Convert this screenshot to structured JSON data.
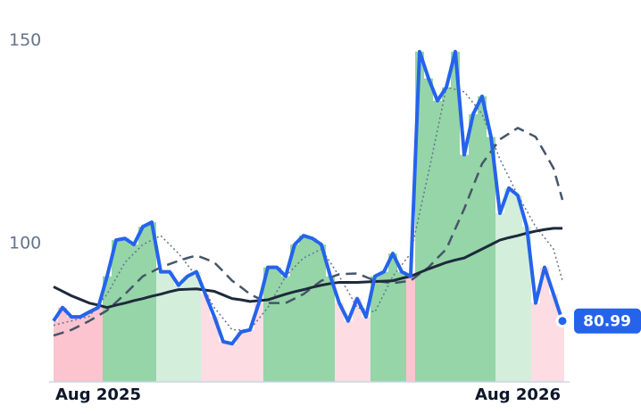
{
  "chart_data": {
    "type": "line",
    "categories": [
      null,
      null,
      null,
      null,
      null,
      "Aug 2025",
      null,
      null,
      null,
      null,
      null,
      null,
      null,
      null,
      null,
      null,
      null,
      null,
      null,
      null,
      null,
      null,
      null,
      null,
      null,
      null,
      null,
      null,
      null,
      null,
      null,
      null,
      null,
      null,
      null,
      null,
      null,
      null,
      null,
      null,
      null,
      null,
      null,
      null,
      null,
      null,
      null,
      null,
      null,
      null,
      null,
      null,
      "Aug 2026",
      null,
      null,
      null,
      null,
      null
    ],
    "ylim": [
      66,
      160
    ],
    "yticks": [
      100,
      150
    ],
    "band_colors": {
      "up": "#95d5a8",
      "weak_up": "#d3eedb",
      "weak_down": "#fbc4cf",
      "down": "#fddde3"
    },
    "series": [
      {
        "color": "#2563eb",
        "dash": "solid",
        "width": 4,
        "values": [
          81,
          84.3,
          82,
          82,
          83.2,
          84.3,
          92,
          100.9,
          101.3,
          99.8,
          104.2,
          105.3,
          93.1,
          93.1,
          89.8,
          92,
          93.1,
          87.6,
          82.1,
          75.9,
          75.4,
          78.3,
          78.8,
          85.4,
          94.2,
          94.2,
          92,
          99.8,
          102,
          101.3,
          99.8,
          92,
          85.4,
          81,
          86.5,
          82,
          92,
          93.1,
          97.6,
          93.1,
          92,
          147.3,
          140.7,
          135.2,
          138.5,
          147.3,
          121.9,
          131.9,
          136.3,
          126.3,
          107.5,
          113.7,
          111.9,
          104.2,
          85.4,
          94.2,
          87.6,
          80.99
        ]
      },
      {
        "color": "#1e293b",
        "dash": "solid",
        "width": 3,
        "values": [
          89.4,
          88.3,
          87.2,
          86.3,
          85.4,
          84.9,
          84.3,
          84.9,
          85.4,
          86,
          86.5,
          87.1,
          87.6,
          88.2,
          88.7,
          88.8,
          88.9,
          88.6,
          88.3,
          87.4,
          86.5,
          86.2,
          85.8,
          86,
          86.2,
          86.9,
          87.6,
          88.2,
          88.7,
          89.3,
          89.8,
          90.2,
          90.5,
          90.5,
          90.5,
          90.6,
          90.7,
          90.8,
          90.9,
          91.5,
          92,
          92.9,
          93.8,
          94.6,
          95.4,
          96,
          96.5,
          97.6,
          98.7,
          99.8,
          100.9,
          101.5,
          102,
          102.6,
          103.1,
          103.5,
          103.8,
          103.8
        ]
      },
      {
        "color": "#475569",
        "dash": "dashed",
        "width": 2.5,
        "values": [
          77.4,
          78.1,
          78.8,
          79.9,
          81,
          82.3,
          83.6,
          85.6,
          87.6,
          89.8,
          92,
          93.1,
          94.2,
          95,
          95.8,
          96.5,
          97.1,
          96.3,
          95.4,
          93.2,
          90.9,
          89.3,
          87.6,
          86.5,
          85.4,
          85.4,
          85.4,
          86.5,
          87.6,
          89.3,
          90.9,
          91.7,
          92.5,
          92.6,
          92.7,
          91.8,
          90.9,
          90.6,
          90.3,
          90.6,
          90.9,
          92.6,
          94.2,
          96.5,
          98.7,
          103.7,
          108.6,
          114.2,
          119.7,
          122.7,
          125.7,
          127.1,
          128.5,
          127.4,
          126.3,
          122.5,
          118.6,
          110.8
        ]
      },
      {
        "color": "#64748b",
        "dash": "dotted",
        "width": 1.5,
        "values": [
          79.9,
          80.5,
          81,
          81.6,
          82.1,
          84.9,
          87.6,
          91.5,
          95.4,
          97.6,
          99.8,
          100.9,
          102,
          99.8,
          97.6,
          94.8,
          92,
          88.2,
          84.3,
          81.6,
          78.8,
          78.8,
          78.8,
          81.6,
          84.3,
          88.2,
          92,
          94.3,
          96.5,
          97.6,
          98.7,
          95.4,
          92,
          88.2,
          84.3,
          83.8,
          83.2,
          87.6,
          92,
          94.8,
          97.6,
          107.6,
          117.5,
          128,
          138.5,
          138,
          137.4,
          134.7,
          131.9,
          126.4,
          120.8,
          116.4,
          111.9,
          108.1,
          104.2,
          101.5,
          98.7,
          90.9
        ]
      }
    ]
  }
}
